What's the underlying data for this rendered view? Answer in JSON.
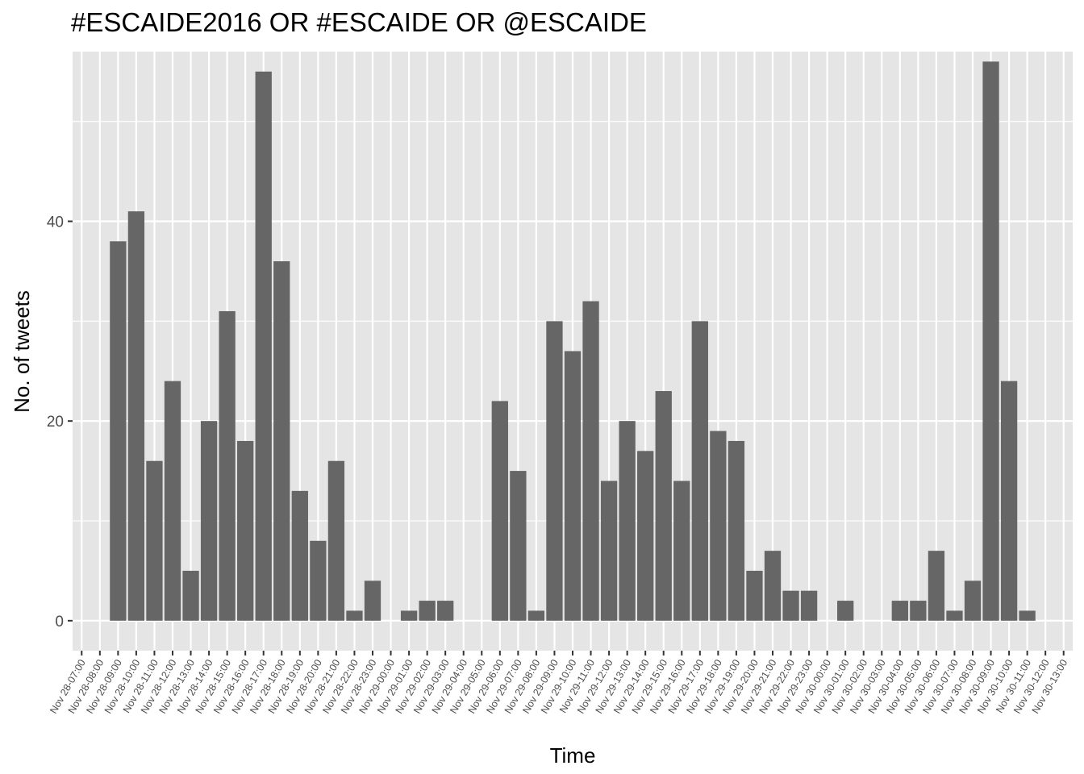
{
  "chart_data": {
    "type": "bar",
    "title": "#ESCAIDE2016 OR #ESCAIDE OR @ESCAIDE",
    "xlabel": "Time",
    "ylabel": "No. of tweets",
    "ylim": [
      -3,
      57
    ],
    "yticks": [
      0,
      20,
      40
    ],
    "grid": true,
    "legend": "none",
    "colors": {
      "panel": "#e5e5e5",
      "grid": "#ffffff",
      "bar": "#666666",
      "tick": "#4d4d4d"
    },
    "categories": [
      "Nov 28-07:00",
      "Nov 28-08:00",
      "Nov 28-09:00",
      "Nov 28-10:00",
      "Nov 28-11:00",
      "Nov 28-12:00",
      "Nov 28-13:00",
      "Nov 28-14:00",
      "Nov 28-15:00",
      "Nov 28-16:00",
      "Nov 28-17:00",
      "Nov 28-18:00",
      "Nov 28-19:00",
      "Nov 28-20:00",
      "Nov 28-21:00",
      "Nov 28-22:00",
      "Nov 28-23:00",
      "Nov 29-00:00",
      "Nov 29-01:00",
      "Nov 29-02:00",
      "Nov 29-03:00",
      "Nov 29-04:00",
      "Nov 29-05:00",
      "Nov 29-06:00",
      "Nov 29-07:00",
      "Nov 29-08:00",
      "Nov 29-09:00",
      "Nov 29-10:00",
      "Nov 29-11:00",
      "Nov 29-12:00",
      "Nov 29-13:00",
      "Nov 29-14:00",
      "Nov 29-15:00",
      "Nov 29-16:00",
      "Nov 29-17:00",
      "Nov 29-18:00",
      "Nov 29-19:00",
      "Nov 29-20:00",
      "Nov 29-21:00",
      "Nov 29-22:00",
      "Nov 29-23:00",
      "Nov 30-00:00",
      "Nov 30-01:00",
      "Nov 30-02:00",
      "Nov 30-03:00",
      "Nov 30-04:00",
      "Nov 30-05:00",
      "Nov 30-06:00",
      "Nov 30-07:00",
      "Nov 30-08:00",
      "Nov 30-09:00",
      "Nov 30-10:00",
      "Nov 30-11:00",
      "Nov 30-12:00",
      "Nov 30-13:00"
    ],
    "values": [
      null,
      null,
      38,
      41,
      16,
      24,
      5,
      20,
      31,
      18,
      55,
      36,
      13,
      8,
      16,
      1,
      4,
      null,
      1,
      2,
      2,
      null,
      null,
      22,
      15,
      1,
      30,
      27,
      32,
      14,
      20,
      17,
      23,
      14,
      30,
      19,
      18,
      5,
      7,
      3,
      3,
      null,
      2,
      null,
      null,
      2,
      2,
      7,
      1,
      4,
      56,
      24,
      1,
      null,
      null
    ]
  }
}
